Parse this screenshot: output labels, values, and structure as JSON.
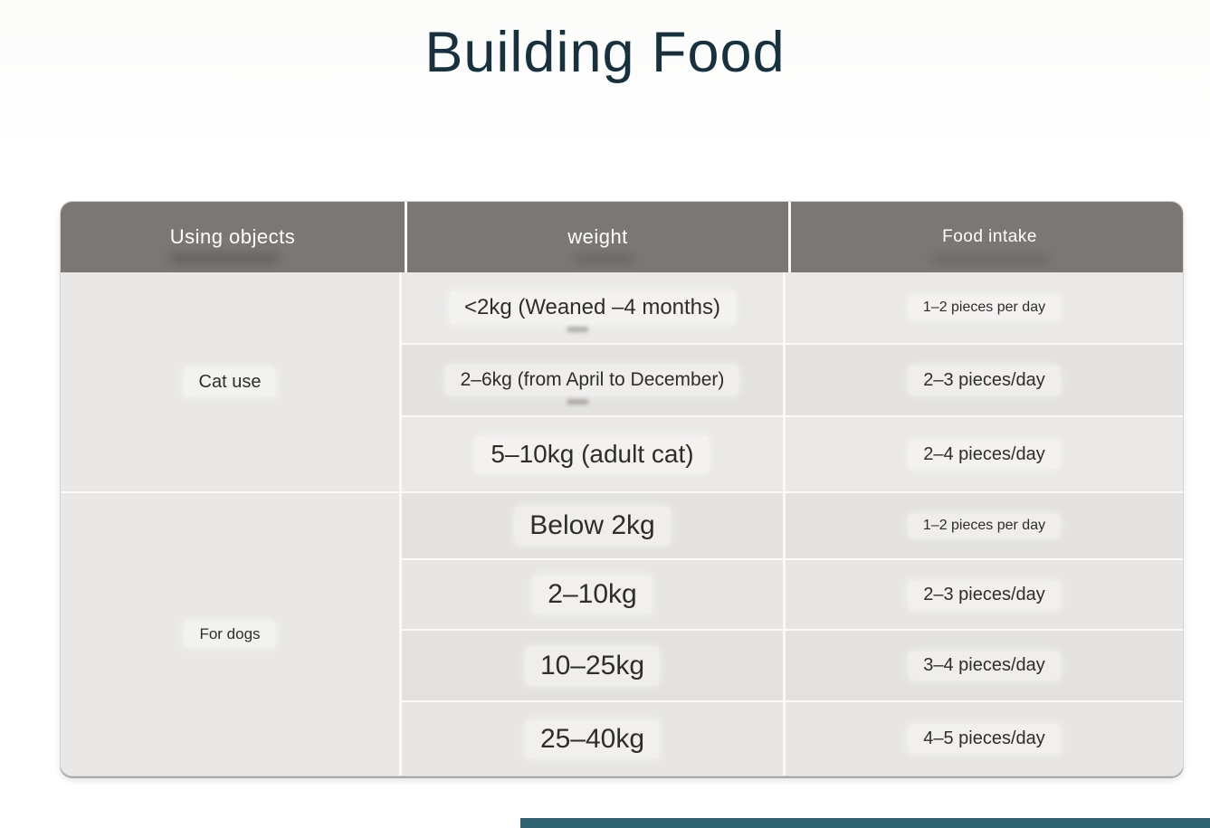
{
  "page": {
    "title": "Building Food"
  },
  "table": {
    "headers": [
      "Using objects",
      "weight",
      "Food intake"
    ],
    "groups": [
      {
        "label": "Cat use",
        "rows": [
          {
            "weight": "<2kg (Weaned –4 months)",
            "intake": "1–2 pieces per day"
          },
          {
            "weight": "2–6kg (from April to December)",
            "intake": "2–3 pieces/day"
          },
          {
            "weight": "5–10kg (adult cat)",
            "intake": "2–4 pieces/day"
          }
        ]
      },
      {
        "label": "For dogs",
        "rows": [
          {
            "weight": "Below 2kg",
            "intake": "1–2 pieces per day"
          },
          {
            "weight": "2–10kg",
            "intake": "2–3 pieces/day"
          },
          {
            "weight": "10–25kg",
            "intake": "3–4 pieces/day"
          },
          {
            "weight": "25–40kg",
            "intake": "4–5 pieces/day"
          }
        ]
      }
    ]
  },
  "colors": {
    "title": "#17323e",
    "header_bg": "#7a7774",
    "header_text": "#ffffff",
    "body_bg": "#eae9e7",
    "body_bg_alt": "#e3e2e0",
    "text": "#2e2d2b",
    "accent_bar": "#2e6270"
  }
}
